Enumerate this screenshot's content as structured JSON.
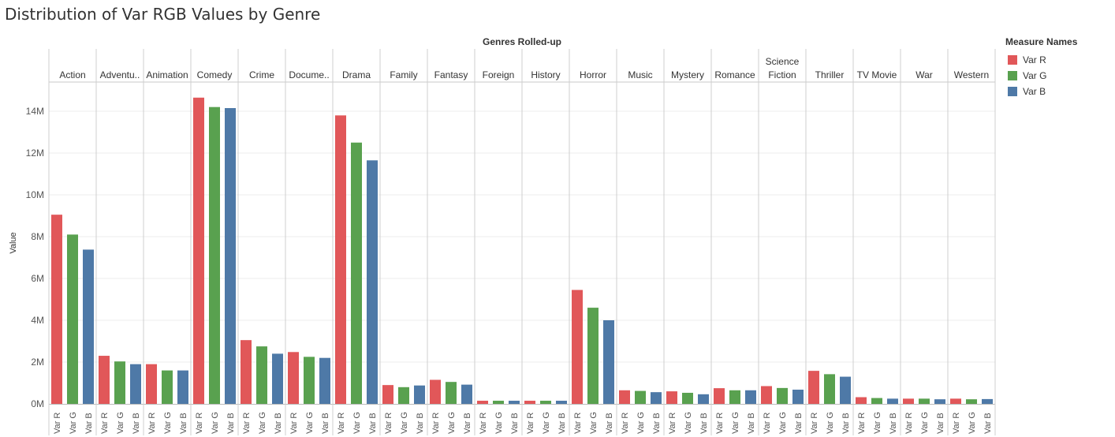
{
  "chart_data": {
    "type": "bar",
    "title": "Distribution of Var RGB Values by Genre",
    "column_header": "Genres Rolled-up",
    "ylabel": "Value",
    "ylim": [
      0,
      15500000
    ],
    "y_ticks": [
      {
        "value": 0,
        "label": "0M"
      },
      {
        "value": 2000000,
        "label": "2M"
      },
      {
        "value": 4000000,
        "label": "4M"
      },
      {
        "value": 6000000,
        "label": "6M"
      },
      {
        "value": 8000000,
        "label": "8M"
      },
      {
        "value": 10000000,
        "label": "10M"
      },
      {
        "value": 12000000,
        "label": "12M"
      },
      {
        "value": 14000000,
        "label": "14M"
      }
    ],
    "categories": [
      "Action",
      "Adventu..",
      "Animation",
      "Comedy",
      "Crime",
      "Docume..",
      "Drama",
      "Family",
      "Fantasy",
      "Foreign",
      "History",
      "Horror",
      "Music",
      "Mystery",
      "Romance",
      "Science Fiction",
      "Thriller",
      "TV Movie",
      "War",
      "Western"
    ],
    "series": [
      {
        "name": "Var R",
        "color": "#e15759",
        "values": [
          9050000,
          2300000,
          1900000,
          14650000,
          3050000,
          2480000,
          13800000,
          900000,
          1150000,
          150000,
          150000,
          5450000,
          650000,
          600000,
          750000,
          850000,
          1580000,
          320000,
          250000,
          250000
        ]
      },
      {
        "name": "Var G",
        "color": "#59a14f",
        "values": [
          8100000,
          2030000,
          1600000,
          14200000,
          2750000,
          2250000,
          12500000,
          800000,
          1050000,
          150000,
          150000,
          4600000,
          620000,
          530000,
          650000,
          760000,
          1420000,
          280000,
          250000,
          220000
        ]
      },
      {
        "name": "Var B",
        "color": "#4e79a7",
        "values": [
          7380000,
          1900000,
          1600000,
          14150000,
          2400000,
          2200000,
          11650000,
          880000,
          920000,
          150000,
          150000,
          4000000,
          560000,
          460000,
          650000,
          680000,
          1300000,
          250000,
          220000,
          230000
        ]
      }
    ],
    "x_tick_labels": [
      "Var R",
      "Var G",
      "Var B"
    ],
    "legend": {
      "title": "Measure Names",
      "position": "right"
    },
    "grid": true
  }
}
